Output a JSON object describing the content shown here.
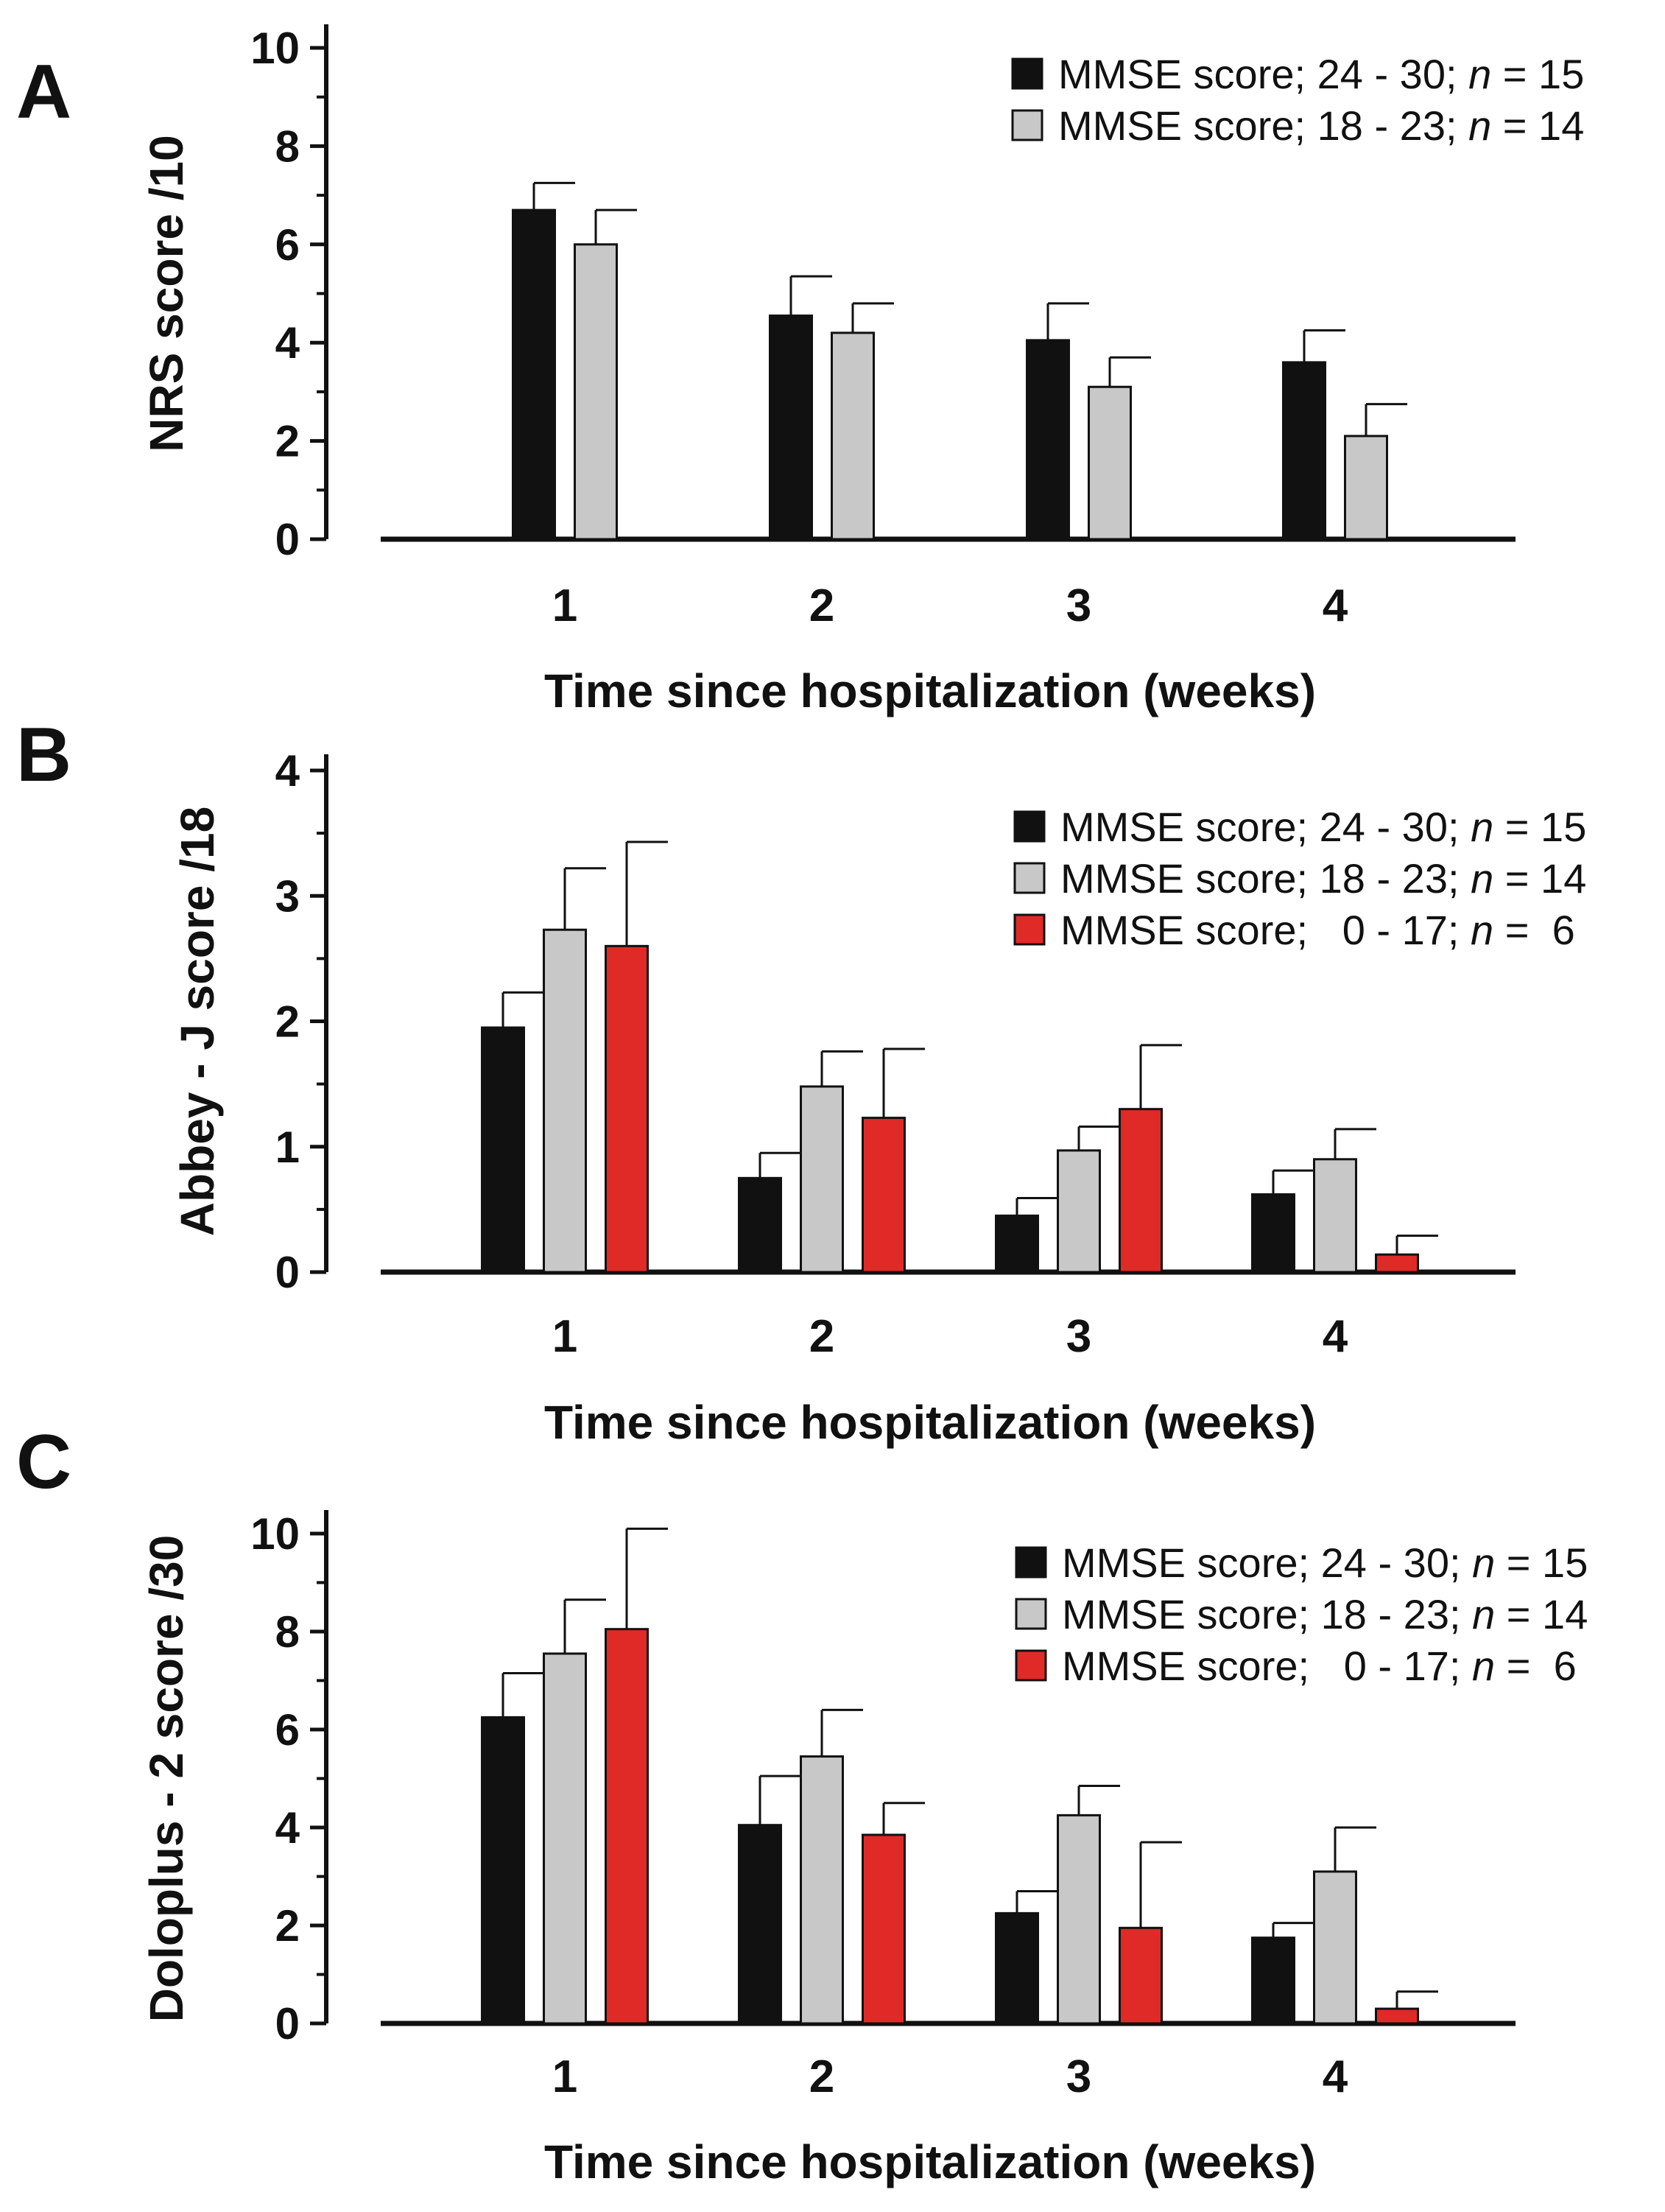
{
  "figure": {
    "colors": {
      "black": "#111111",
      "gray": "#c8c8c8",
      "red": "#e02a27"
    }
  },
  "chart_data": [
    {
      "panel": "A",
      "type": "bar",
      "ylabel": "NRS score  /10",
      "xlabel": "Time since hospitalization (weeks)",
      "ylim": [
        0,
        10
      ],
      "yticks": [
        0,
        2,
        4,
        6,
        8,
        10
      ],
      "categories": [
        "1",
        "2",
        "3",
        "4"
      ],
      "legend_position": "top-right",
      "series": [
        {
          "name": "MMSE score; 24 - 30; n = 15",
          "label_prefix": "MMSE score; 24 - 30; ",
          "label_n": "n",
          "label_suffix": " = 15",
          "color": "#111111",
          "values": [
            6.7,
            4.55,
            4.05,
            3.6
          ],
          "errors": [
            0.55,
            0.8,
            0.75,
            0.65
          ]
        },
        {
          "name": "MMSE score; 18 - 23; n = 14",
          "label_prefix": "MMSE score; 18 - 23; ",
          "label_n": "n",
          "label_suffix": " = 14",
          "color": "#c8c8c8",
          "values": [
            6.0,
            4.2,
            3.1,
            2.1
          ],
          "errors": [
            0.7,
            0.6,
            0.6,
            0.65
          ]
        }
      ]
    },
    {
      "panel": "B",
      "type": "bar",
      "ylabel": "Abbey - J score  /18",
      "xlabel": "Time since hospitalization (weeks)",
      "ylim": [
        0,
        4
      ],
      "yticks": [
        0,
        1,
        2,
        3,
        4
      ],
      "categories": [
        "1",
        "2",
        "3",
        "4"
      ],
      "legend_position": "top-right",
      "series": [
        {
          "name": "MMSE score; 24 - 30; n = 15",
          "label_prefix": "MMSE score; 24 - 30; ",
          "label_n": "n",
          "label_suffix": " = 15",
          "color": "#111111",
          "values": [
            1.95,
            0.75,
            0.45,
            0.62
          ],
          "errors": [
            0.28,
            0.2,
            0.14,
            0.19
          ]
        },
        {
          "name": "MMSE score; 18 - 23; n = 14",
          "label_prefix": "MMSE score; 18 - 23; ",
          "label_n": "n",
          "label_suffix": " = 14",
          "color": "#c8c8c8",
          "values": [
            2.73,
            1.48,
            0.97,
            0.9
          ],
          "errors": [
            0.49,
            0.28,
            0.19,
            0.24
          ]
        },
        {
          "name": "MMSE score;   0 - 17; n =  6",
          "label_prefix": "MMSE score;   0 - 17; ",
          "label_n": "n",
          "label_suffix": " =  6",
          "color": "#e02a27",
          "values": [
            2.6,
            1.23,
            1.3,
            0.14
          ],
          "errors": [
            0.83,
            0.55,
            0.51,
            0.15
          ]
        }
      ]
    },
    {
      "panel": "C",
      "type": "bar",
      "ylabel": "Doloplus - 2 score  /30",
      "xlabel": "Time since hospitalization (weeks)",
      "ylim": [
        0,
        10
      ],
      "yticks": [
        0,
        2,
        4,
        6,
        8,
        10
      ],
      "categories": [
        "1",
        "2",
        "3",
        "4"
      ],
      "legend_position": "top-right",
      "series": [
        {
          "name": "MMSE score; 24 - 30; n = 15",
          "label_prefix": "MMSE score; 24 - 30; ",
          "label_n": "n",
          "label_suffix": " = 15",
          "color": "#111111",
          "values": [
            6.25,
            4.05,
            2.25,
            1.75
          ],
          "errors": [
            0.9,
            1.0,
            0.45,
            0.3
          ]
        },
        {
          "name": "MMSE score; 18 - 23; n = 14",
          "label_prefix": "MMSE score; 18 - 23; ",
          "label_n": "n",
          "label_suffix": " = 14",
          "color": "#c8c8c8",
          "values": [
            7.55,
            5.45,
            4.25,
            3.1
          ],
          "errors": [
            1.1,
            0.95,
            0.6,
            0.9
          ]
        },
        {
          "name": "MMSE score;   0 - 17; n =  6",
          "label_prefix": "MMSE score;   0 - 17; ",
          "label_n": "n",
          "label_suffix": " =  6",
          "color": "#e02a27",
          "values": [
            8.05,
            3.85,
            1.95,
            0.3
          ],
          "errors": [
            2.05,
            0.65,
            1.75,
            0.35
          ]
        }
      ]
    }
  ]
}
